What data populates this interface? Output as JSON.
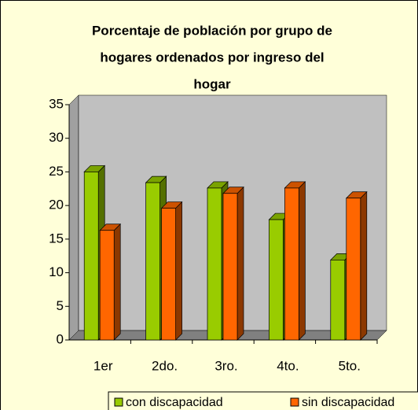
{
  "chart_data": {
    "type": "bar3d",
    "title": [
      "Porcentaje de población por grupo de",
      "hogares ordenados por ingreso del",
      "hogar"
    ],
    "categories": [
      "1er",
      "2do.",
      "3ro.",
      "4to.",
      "5to."
    ],
    "series": [
      {
        "name": "con discapacidad",
        "color": "#99cc00",
        "values": [
          25.0,
          23.4,
          22.6,
          17.9,
          11.9
        ]
      },
      {
        "name": "sin discapacidad",
        "color": "#ff6600",
        "values": [
          16.3,
          19.6,
          21.8,
          22.6,
          21.1
        ]
      }
    ],
    "ylim": [
      0,
      35
    ],
    "yticks": [
      0,
      5,
      10,
      15,
      20,
      25,
      30,
      35
    ]
  }
}
